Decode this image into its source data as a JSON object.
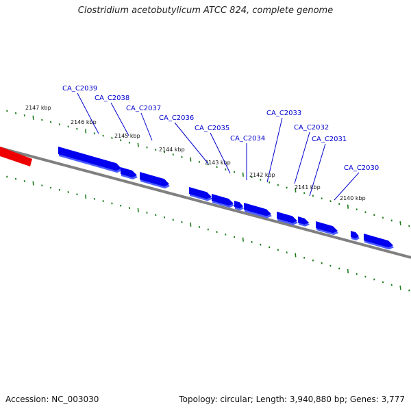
{
  "title": "Clostridium acetobutylicum ATCC 824, complete genome",
  "footer": {
    "accession": "Accession: NC_003030",
    "stats": "Topology: circular; Length: 3,940,880 bp; Genes: 3,777"
  },
  "colors": {
    "gene_forward": "#0000ee",
    "gene_shadow": "#4a5cff",
    "highlight_region": "#ee0000",
    "backbone": "#808080",
    "tick": "#1a7a1a",
    "label_line": "#0000cc"
  },
  "kbp_ticks": [
    "2147 kbp",
    "2146 kbp",
    "2145 kbp",
    "2144 kbp",
    "2143 kbp",
    "2142 kbp",
    "2141 kbp",
    "2140 kbp"
  ],
  "gene_labels": [
    "CA_C2039",
    "CA_C2038",
    "CA_C2037",
    "CA_C2036",
    "CA_C2035",
    "CA_C2034",
    "CA_C2033",
    "CA_C2032",
    "CA_C2031",
    "CA_C2030"
  ]
}
